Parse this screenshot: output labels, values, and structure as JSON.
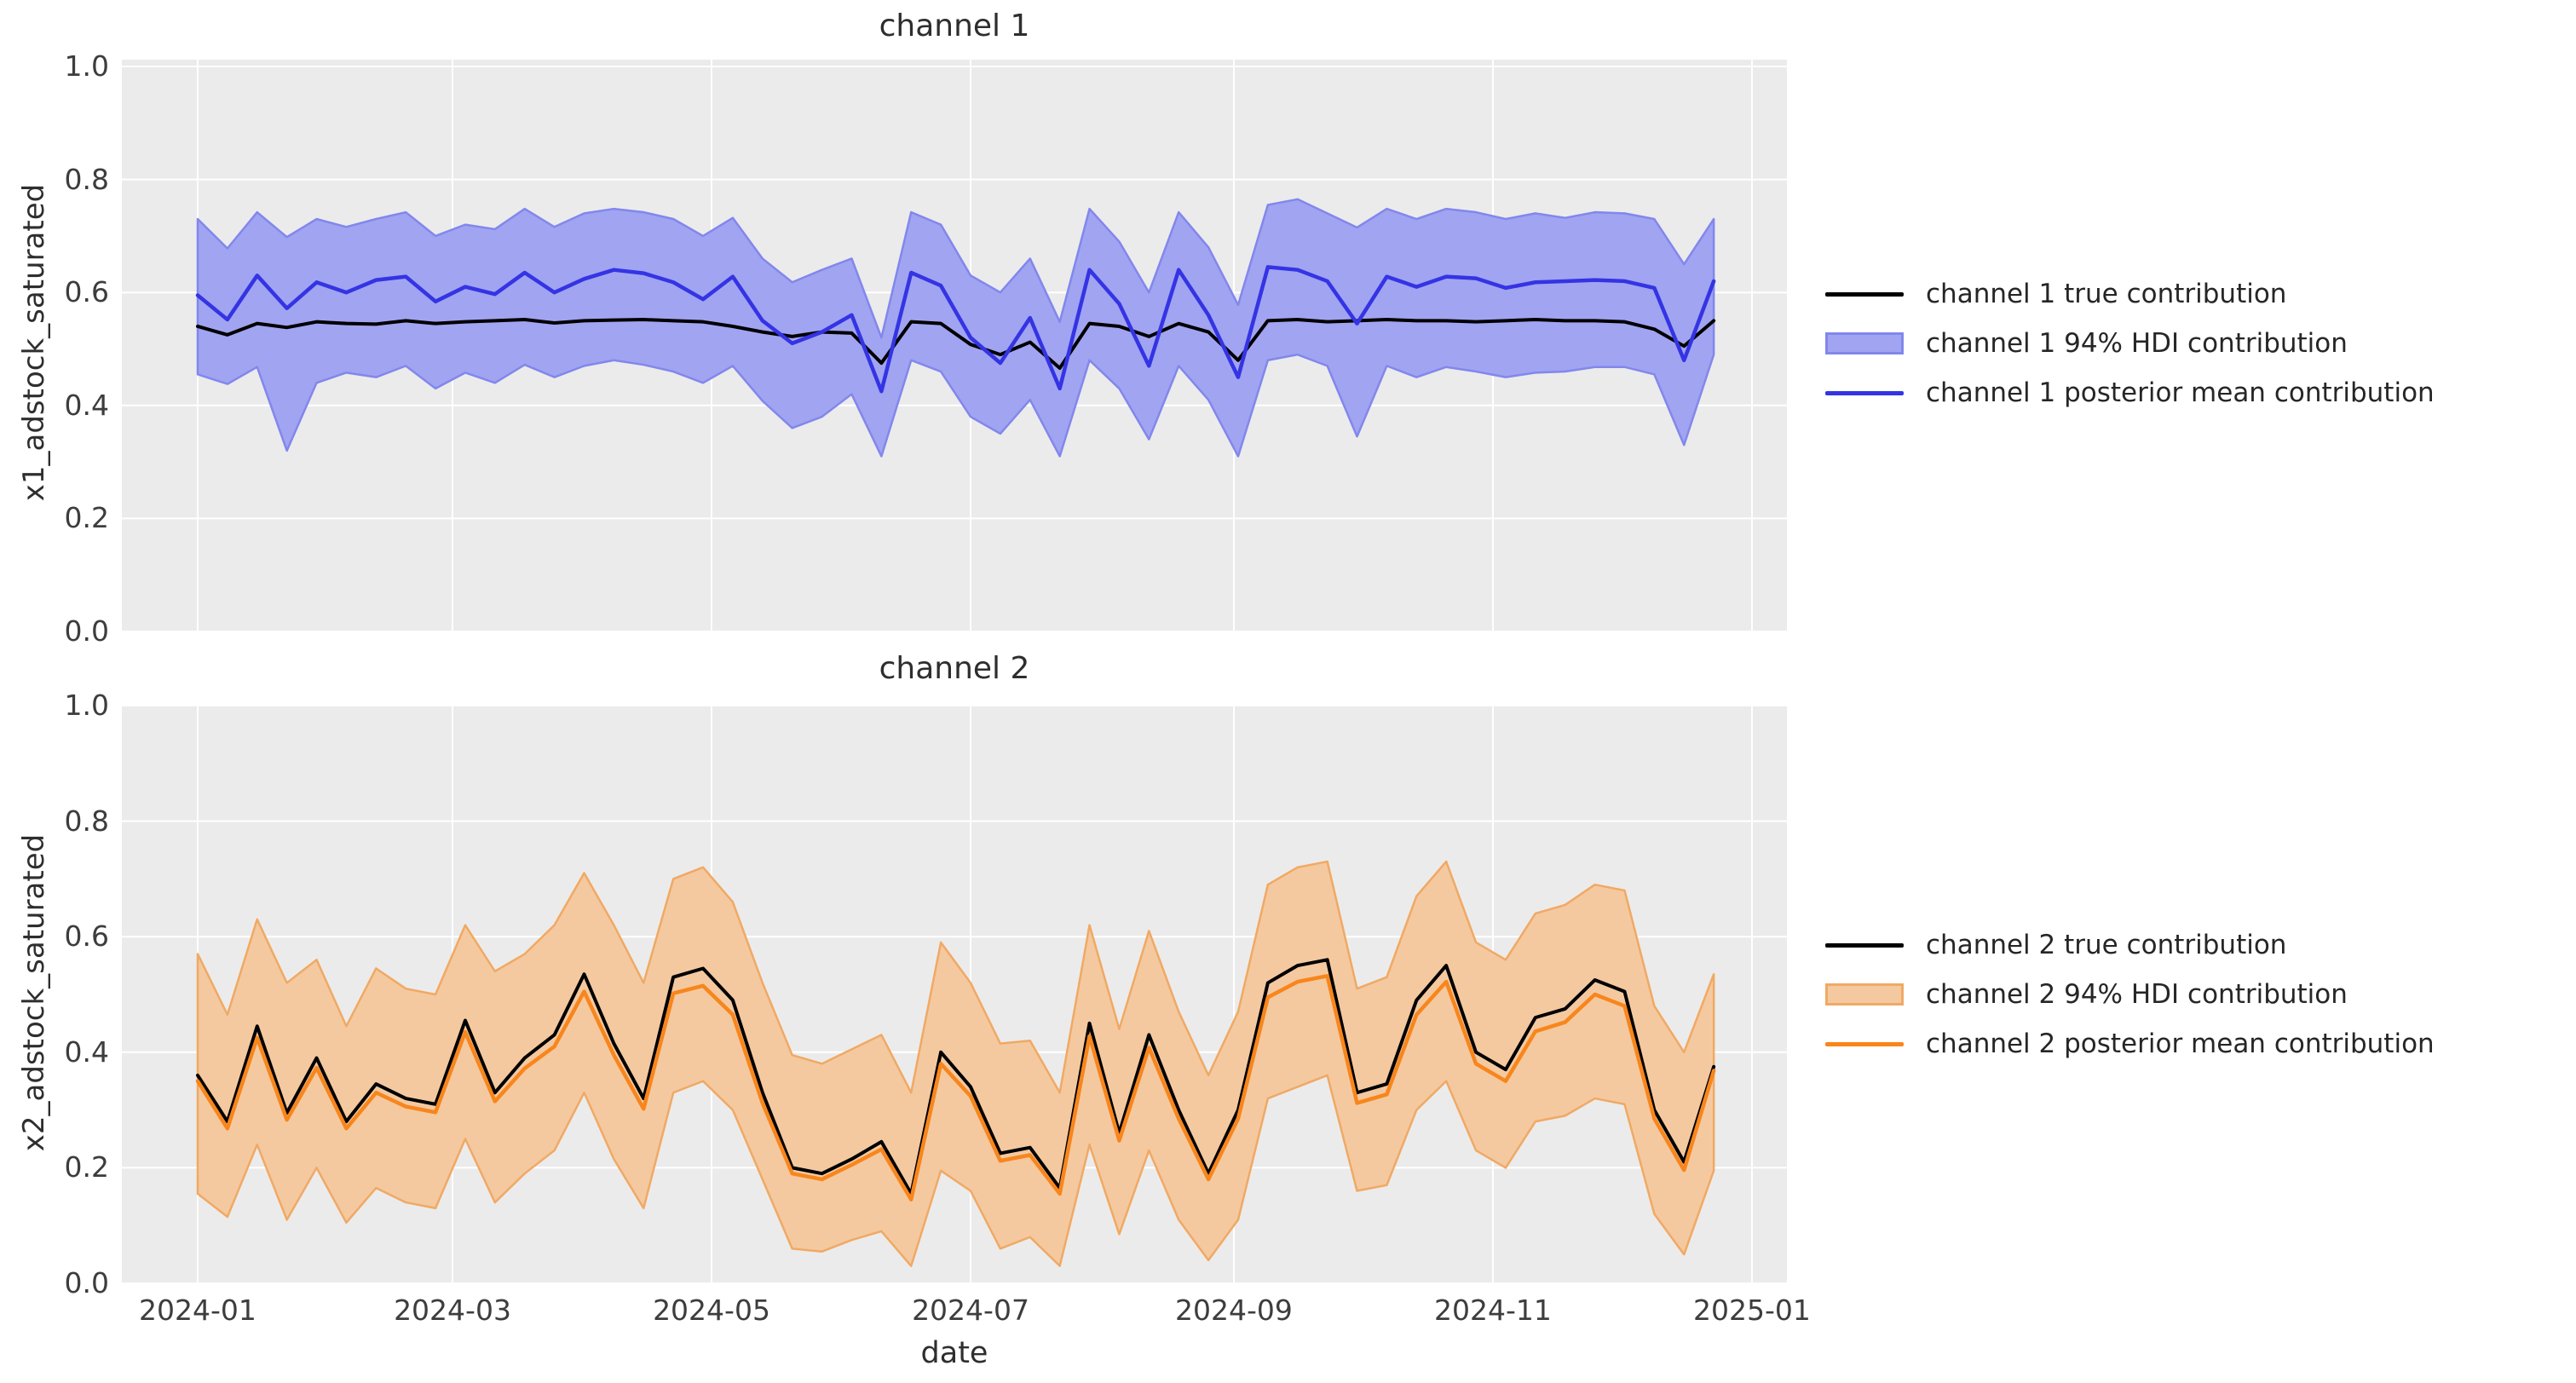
{
  "figure": {
    "background": "#FFFFFF",
    "plot_background": "#EBEBEB",
    "grid_color": "#FFFFFF",
    "text_color": "#2e2e2e"
  },
  "chart_data": [
    {
      "type": "line",
      "title": "channel 1",
      "xlabel": "",
      "ylabel": "x1_adstock_saturated",
      "ylim": [
        0.0,
        1.0
      ],
      "grid": true,
      "legend_position": "right",
      "ytick_labels": [
        "0.0",
        "0.2",
        "0.4",
        "0.6",
        "0.8",
        "1.0"
      ],
      "xtick_labels": [
        "2024-01",
        "2024-03",
        "2024-05",
        "2024-07",
        "2024-09",
        "2024-11",
        "2025-01"
      ],
      "dates": [
        "2024-01-01",
        "2024-01-08",
        "2024-01-15",
        "2024-01-22",
        "2024-01-29",
        "2024-02-05",
        "2024-02-12",
        "2024-02-19",
        "2024-02-26",
        "2024-03-04",
        "2024-03-11",
        "2024-03-18",
        "2024-03-25",
        "2024-04-01",
        "2024-04-08",
        "2024-04-15",
        "2024-04-22",
        "2024-04-29",
        "2024-05-06",
        "2024-05-13",
        "2024-05-20",
        "2024-05-27",
        "2024-06-03",
        "2024-06-10",
        "2024-06-17",
        "2024-06-24",
        "2024-07-01",
        "2024-07-08",
        "2024-07-15",
        "2024-07-22",
        "2024-07-29",
        "2024-08-05",
        "2024-08-12",
        "2024-08-19",
        "2024-08-26",
        "2024-09-02",
        "2024-09-09",
        "2024-09-16",
        "2024-09-23",
        "2024-09-30",
        "2024-10-07",
        "2024-10-14",
        "2024-10-21",
        "2024-10-28",
        "2024-11-04",
        "2024-11-11",
        "2024-11-18",
        "2024-11-25",
        "2024-12-02",
        "2024-12-09",
        "2024-12-16",
        "2024-12-23"
      ],
      "series": [
        {
          "name": "channel 1 true contribution",
          "kind": "line",
          "color": "#000000",
          "values": [
            0.54,
            0.525,
            0.545,
            0.538,
            0.548,
            0.545,
            0.544,
            0.55,
            0.545,
            0.548,
            0.55,
            0.552,
            0.546,
            0.55,
            0.551,
            0.552,
            0.55,
            0.548,
            0.54,
            0.53,
            0.522,
            0.53,
            0.528,
            0.475,
            0.548,
            0.545,
            0.508,
            0.49,
            0.512,
            0.466,
            0.545,
            0.54,
            0.522,
            0.545,
            0.53,
            0.48,
            0.55,
            0.552,
            0.548,
            0.55,
            0.552,
            0.55,
            0.55,
            0.548,
            0.55,
            0.552,
            0.55,
            0.55,
            0.548,
            0.535,
            0.505,
            0.55
          ]
        },
        {
          "name": "channel 1 94% HDI contribution",
          "kind": "band",
          "fill": "#A1A4F1",
          "edge": "#8287EC",
          "upper": [
            0.73,
            0.678,
            0.742,
            0.698,
            0.73,
            0.716,
            0.73,
            0.742,
            0.7,
            0.72,
            0.712,
            0.748,
            0.716,
            0.74,
            0.748,
            0.742,
            0.73,
            0.7,
            0.732,
            0.66,
            0.618,
            0.64,
            0.66,
            0.52,
            0.742,
            0.72,
            0.63,
            0.6,
            0.66,
            0.548,
            0.748,
            0.69,
            0.6,
            0.742,
            0.68,
            0.578,
            0.755,
            0.765,
            0.74,
            0.715,
            0.748,
            0.73,
            0.748,
            0.742,
            0.73,
            0.74,
            0.732,
            0.742,
            0.74,
            0.73,
            0.65,
            0.73
          ],
          "lower": [
            0.455,
            0.438,
            0.468,
            0.32,
            0.44,
            0.458,
            0.45,
            0.47,
            0.43,
            0.458,
            0.44,
            0.472,
            0.45,
            0.47,
            0.48,
            0.472,
            0.46,
            0.44,
            0.47,
            0.408,
            0.36,
            0.38,
            0.42,
            0.31,
            0.48,
            0.46,
            0.38,
            0.35,
            0.41,
            0.31,
            0.48,
            0.43,
            0.34,
            0.47,
            0.41,
            0.31,
            0.48,
            0.49,
            0.47,
            0.345,
            0.47,
            0.45,
            0.468,
            0.46,
            0.45,
            0.458,
            0.46,
            0.468,
            0.468,
            0.455,
            0.33,
            0.49
          ]
        },
        {
          "name": "channel 1 posterior mean contribution",
          "kind": "line",
          "color": "#3434E4",
          "values": [
            0.595,
            0.552,
            0.63,
            0.572,
            0.618,
            0.6,
            0.622,
            0.628,
            0.584,
            0.61,
            0.597,
            0.635,
            0.6,
            0.624,
            0.64,
            0.634,
            0.618,
            0.588,
            0.628,
            0.55,
            0.51,
            0.53,
            0.56,
            0.425,
            0.635,
            0.612,
            0.52,
            0.475,
            0.555,
            0.43,
            0.64,
            0.58,
            0.47,
            0.64,
            0.56,
            0.45,
            0.645,
            0.64,
            0.62,
            0.545,
            0.628,
            0.61,
            0.628,
            0.625,
            0.608,
            0.618,
            0.62,
            0.622,
            0.62,
            0.608,
            0.48,
            0.62
          ]
        }
      ]
    },
    {
      "type": "line",
      "title": "channel 2",
      "xlabel": "date",
      "ylabel": "x2_adstock_saturated",
      "ylim": [
        0.0,
        1.0
      ],
      "grid": true,
      "legend_position": "right",
      "ytick_labels": [
        "0.0",
        "0.2",
        "0.4",
        "0.6",
        "0.8",
        "1.0"
      ],
      "xtick_labels": [
        "2024-01",
        "2024-03",
        "2024-05",
        "2024-07",
        "2024-09",
        "2024-11",
        "2025-01"
      ],
      "dates": [
        "2024-01-01",
        "2024-01-08",
        "2024-01-15",
        "2024-01-22",
        "2024-01-29",
        "2024-02-05",
        "2024-02-12",
        "2024-02-19",
        "2024-02-26",
        "2024-03-04",
        "2024-03-11",
        "2024-03-18",
        "2024-03-25",
        "2024-04-01",
        "2024-04-08",
        "2024-04-15",
        "2024-04-22",
        "2024-04-29",
        "2024-05-06",
        "2024-05-13",
        "2024-05-20",
        "2024-05-27",
        "2024-06-03",
        "2024-06-10",
        "2024-06-17",
        "2024-06-24",
        "2024-07-01",
        "2024-07-08",
        "2024-07-15",
        "2024-07-22",
        "2024-07-29",
        "2024-08-05",
        "2024-08-12",
        "2024-08-19",
        "2024-08-26",
        "2024-09-02",
        "2024-09-09",
        "2024-09-16",
        "2024-09-23",
        "2024-09-30",
        "2024-10-07",
        "2024-10-14",
        "2024-10-21",
        "2024-10-28",
        "2024-11-04",
        "2024-11-11",
        "2024-11-18",
        "2024-11-25",
        "2024-12-02",
        "2024-12-09",
        "2024-12-16",
        "2024-12-23"
      ],
      "series": [
        {
          "name": "channel 2 true contribution",
          "kind": "line",
          "color": "#000000",
          "values": [
            0.36,
            0.28,
            0.445,
            0.295,
            0.39,
            0.28,
            0.345,
            0.32,
            0.31,
            0.455,
            0.33,
            0.39,
            0.43,
            0.535,
            0.415,
            0.32,
            0.53,
            0.545,
            0.49,
            0.33,
            0.2,
            0.19,
            0.215,
            0.245,
            0.155,
            0.4,
            0.34,
            0.225,
            0.235,
            0.165,
            0.45,
            0.26,
            0.43,
            0.3,
            0.19,
            0.3,
            0.52,
            0.55,
            0.56,
            0.33,
            0.345,
            0.49,
            0.55,
            0.4,
            0.37,
            0.46,
            0.475,
            0.525,
            0.505,
            0.3,
            0.21,
            0.375
          ]
        },
        {
          "name": "channel 2 94% HDI contribution",
          "kind": "band",
          "fill": "#F4C9A0",
          "edge": "#F0A964",
          "upper": [
            0.57,
            0.465,
            0.63,
            0.52,
            0.56,
            0.445,
            0.545,
            0.51,
            0.5,
            0.62,
            0.54,
            0.57,
            0.62,
            0.71,
            0.62,
            0.52,
            0.7,
            0.72,
            0.66,
            0.52,
            0.395,
            0.38,
            0.405,
            0.43,
            0.33,
            0.59,
            0.52,
            0.415,
            0.42,
            0.33,
            0.62,
            0.44,
            0.61,
            0.47,
            0.36,
            0.47,
            0.69,
            0.72,
            0.73,
            0.51,
            0.53,
            0.67,
            0.73,
            0.59,
            0.56,
            0.64,
            0.655,
            0.69,
            0.68,
            0.48,
            0.4,
            0.535
          ],
          "lower": [
            0.155,
            0.115,
            0.24,
            0.11,
            0.2,
            0.105,
            0.165,
            0.14,
            0.13,
            0.25,
            0.14,
            0.19,
            0.23,
            0.33,
            0.215,
            0.13,
            0.33,
            0.35,
            0.3,
            0.18,
            0.06,
            0.055,
            0.075,
            0.09,
            0.03,
            0.195,
            0.16,
            0.06,
            0.08,
            0.03,
            0.24,
            0.085,
            0.23,
            0.11,
            0.04,
            0.11,
            0.32,
            0.34,
            0.36,
            0.16,
            0.17,
            0.3,
            0.35,
            0.23,
            0.2,
            0.28,
            0.29,
            0.32,
            0.31,
            0.12,
            0.05,
            0.195
          ]
        },
        {
          "name": "channel 2 posterior mean contribution",
          "kind": "line",
          "color": "#F8861C",
          "values": [
            0.35,
            0.268,
            0.425,
            0.283,
            0.373,
            0.268,
            0.33,
            0.306,
            0.296,
            0.435,
            0.315,
            0.372,
            0.41,
            0.505,
            0.395,
            0.302,
            0.502,
            0.515,
            0.465,
            0.312,
            0.19,
            0.18,
            0.205,
            0.232,
            0.145,
            0.38,
            0.324,
            0.212,
            0.222,
            0.155,
            0.428,
            0.247,
            0.408,
            0.285,
            0.18,
            0.285,
            0.495,
            0.522,
            0.532,
            0.312,
            0.327,
            0.465,
            0.522,
            0.38,
            0.35,
            0.436,
            0.452,
            0.5,
            0.48,
            0.285,
            0.196,
            0.368
          ]
        }
      ]
    }
  ]
}
